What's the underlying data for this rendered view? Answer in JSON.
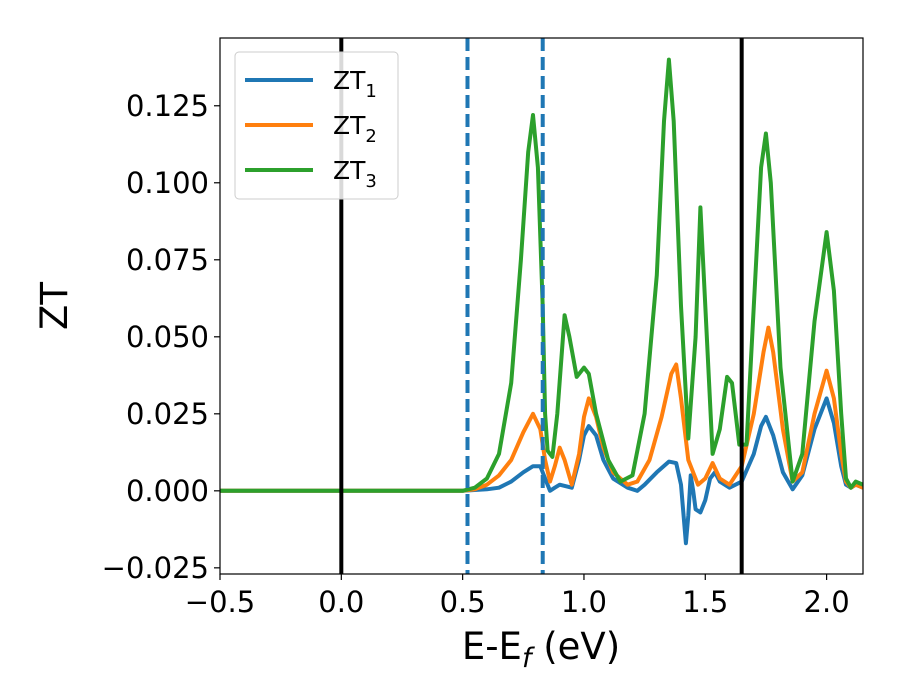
{
  "chart_data": {
    "type": "line",
    "title": "",
    "xlabel": "E-E",
    "xlabel_sub": "f",
    "xlabel_unit": " (eV)",
    "ylabel": "ZT",
    "xlim": [
      -0.5,
      2.15
    ],
    "ylim": [
      -0.027,
      0.147
    ],
    "x_ticks": [
      -0.5,
      0.0,
      0.5,
      1.0,
      1.5,
      2.0
    ],
    "x_tick_labels": [
      "−0.5",
      "0.0",
      "0.5",
      "1.0",
      "1.5",
      "2.0"
    ],
    "y_ticks": [
      -0.025,
      0.0,
      0.025,
      0.05,
      0.075,
      0.1,
      0.125
    ],
    "y_tick_labels": [
      "−0.025",
      "0.000",
      "0.025",
      "0.050",
      "0.075",
      "0.100",
      "0.125"
    ],
    "grid": false,
    "legend_position": "top-left",
    "vertical_lines": [
      {
        "x": 0.0,
        "color": "#000000",
        "style": "solid"
      },
      {
        "x": 0.52,
        "color": "#1f77b4",
        "style": "dashed"
      },
      {
        "x": 0.83,
        "color": "#1f77b4",
        "style": "dashed"
      },
      {
        "x": 1.65,
        "color": "#000000",
        "style": "solid"
      }
    ],
    "series": [
      {
        "name": "ZT",
        "name_sub": "1",
        "color": "#1f77b4",
        "points": [
          [
            -0.5,
            0
          ],
          [
            0.5,
            0
          ],
          [
            0.6,
            0.0005
          ],
          [
            0.65,
            0.001
          ],
          [
            0.7,
            0.003
          ],
          [
            0.75,
            0.006
          ],
          [
            0.79,
            0.008
          ],
          [
            0.82,
            0.008
          ],
          [
            0.84,
            0.004
          ],
          [
            0.86,
            0.0
          ],
          [
            0.88,
            0.001
          ],
          [
            0.9,
            0.002
          ],
          [
            0.95,
            0.001
          ],
          [
            0.98,
            0.01
          ],
          [
            1.0,
            0.018
          ],
          [
            1.02,
            0.021
          ],
          [
            1.05,
            0.018
          ],
          [
            1.08,
            0.01
          ],
          [
            1.12,
            0.004
          ],
          [
            1.18,
            0.001
          ],
          [
            1.22,
            0.0
          ],
          [
            1.25,
            0.002
          ],
          [
            1.3,
            0.006
          ],
          [
            1.35,
            0.0095
          ],
          [
            1.38,
            0.009
          ],
          [
            1.4,
            0.002
          ],
          [
            1.42,
            -0.017
          ],
          [
            1.43,
            -0.008
          ],
          [
            1.44,
            0.005
          ],
          [
            1.45,
            0.0
          ],
          [
            1.46,
            -0.006
          ],
          [
            1.48,
            -0.007
          ],
          [
            1.5,
            -0.003
          ],
          [
            1.52,
            0.004
          ],
          [
            1.54,
            0.006
          ],
          [
            1.56,
            0.003
          ],
          [
            1.6,
            0.001
          ],
          [
            1.65,
            0.003
          ],
          [
            1.7,
            0.012
          ],
          [
            1.73,
            0.021
          ],
          [
            1.75,
            0.024
          ],
          [
            1.78,
            0.018
          ],
          [
            1.82,
            0.006
          ],
          [
            1.86,
            0.0005
          ],
          [
            1.9,
            0.005
          ],
          [
            1.95,
            0.02
          ],
          [
            2.0,
            0.03
          ],
          [
            2.03,
            0.022
          ],
          [
            2.06,
            0.008
          ],
          [
            2.08,
            0.002
          ],
          [
            2.1,
            0.001
          ],
          [
            2.12,
            0.002
          ],
          [
            2.15,
            0.001
          ]
        ]
      },
      {
        "name": "ZT",
        "name_sub": "2",
        "color": "#ff7f0e",
        "points": [
          [
            -0.5,
            0
          ],
          [
            0.5,
            0
          ],
          [
            0.55,
            0.0005
          ],
          [
            0.6,
            0.002
          ],
          [
            0.65,
            0.005
          ],
          [
            0.7,
            0.01
          ],
          [
            0.75,
            0.019
          ],
          [
            0.79,
            0.025
          ],
          [
            0.82,
            0.02
          ],
          [
            0.84,
            0.01
          ],
          [
            0.86,
            0.003
          ],
          [
            0.88,
            0.008
          ],
          [
            0.9,
            0.014
          ],
          [
            0.92,
            0.01
          ],
          [
            0.95,
            0.002
          ],
          [
            0.98,
            0.012
          ],
          [
            1.0,
            0.024
          ],
          [
            1.02,
            0.03
          ],
          [
            1.05,
            0.024
          ],
          [
            1.08,
            0.014
          ],
          [
            1.12,
            0.006
          ],
          [
            1.18,
            0.002
          ],
          [
            1.22,
            0.003
          ],
          [
            1.27,
            0.01
          ],
          [
            1.32,
            0.024
          ],
          [
            1.36,
            0.038
          ],
          [
            1.38,
            0.041
          ],
          [
            1.4,
            0.03
          ],
          [
            1.43,
            0.01
          ],
          [
            1.47,
            0.002
          ],
          [
            1.5,
            0.004
          ],
          [
            1.53,
            0.009
          ],
          [
            1.56,
            0.004
          ],
          [
            1.6,
            0.002
          ],
          [
            1.65,
            0.008
          ],
          [
            1.7,
            0.025
          ],
          [
            1.74,
            0.045
          ],
          [
            1.76,
            0.053
          ],
          [
            1.78,
            0.045
          ],
          [
            1.82,
            0.02
          ],
          [
            1.86,
            0.003
          ],
          [
            1.9,
            0.006
          ],
          [
            1.95,
            0.025
          ],
          [
            2.0,
            0.039
          ],
          [
            2.03,
            0.03
          ],
          [
            2.06,
            0.012
          ],
          [
            2.08,
            0.003
          ],
          [
            2.1,
            0.001
          ],
          [
            2.12,
            0.002
          ],
          [
            2.15,
            0.001
          ]
        ]
      },
      {
        "name": "ZT",
        "name_sub": "3",
        "color": "#2ca02c",
        "points": [
          [
            -0.5,
            0
          ],
          [
            0.5,
            0
          ],
          [
            0.55,
            0.001
          ],
          [
            0.6,
            0.004
          ],
          [
            0.65,
            0.012
          ],
          [
            0.7,
            0.035
          ],
          [
            0.74,
            0.075
          ],
          [
            0.77,
            0.11
          ],
          [
            0.79,
            0.122
          ],
          [
            0.81,
            0.105
          ],
          [
            0.83,
            0.06
          ],
          [
            0.84,
            0.025
          ],
          [
            0.85,
            0.013
          ],
          [
            0.87,
            0.011
          ],
          [
            0.89,
            0.025
          ],
          [
            0.92,
            0.057
          ],
          [
            0.94,
            0.05
          ],
          [
            0.97,
            0.037
          ],
          [
            1.0,
            0.04
          ],
          [
            1.02,
            0.038
          ],
          [
            1.05,
            0.025
          ],
          [
            1.1,
            0.01
          ],
          [
            1.15,
            0.003
          ],
          [
            1.2,
            0.005
          ],
          [
            1.25,
            0.025
          ],
          [
            1.3,
            0.07
          ],
          [
            1.33,
            0.12
          ],
          [
            1.35,
            0.14
          ],
          [
            1.37,
            0.12
          ],
          [
            1.4,
            0.06
          ],
          [
            1.43,
            0.017
          ],
          [
            1.46,
            0.05
          ],
          [
            1.48,
            0.092
          ],
          [
            1.5,
            0.06
          ],
          [
            1.53,
            0.012
          ],
          [
            1.56,
            0.02
          ],
          [
            1.59,
            0.037
          ],
          [
            1.61,
            0.035
          ],
          [
            1.64,
            0.015
          ],
          [
            1.67,
            0.015
          ],
          [
            1.7,
            0.06
          ],
          [
            1.73,
            0.105
          ],
          [
            1.75,
            0.116
          ],
          [
            1.77,
            0.1
          ],
          [
            1.81,
            0.04
          ],
          [
            1.86,
            0.003
          ],
          [
            1.9,
            0.012
          ],
          [
            1.95,
            0.055
          ],
          [
            2.0,
            0.084
          ],
          [
            2.03,
            0.065
          ],
          [
            2.06,
            0.025
          ],
          [
            2.08,
            0.004
          ],
          [
            2.1,
            0.001
          ],
          [
            2.12,
            0.003
          ],
          [
            2.15,
            0.002
          ]
        ]
      }
    ]
  }
}
